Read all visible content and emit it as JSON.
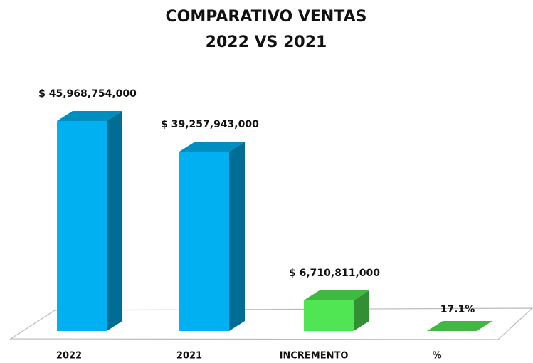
{
  "chart_data": {
    "type": "bar3d",
    "title": [
      "COMPARATIVO VENTAS",
      "2022 VS 2021"
    ],
    "categories": [
      "2022",
      "2021",
      "INCREMENTO",
      "%"
    ],
    "values": [
      45968754000,
      39257943000,
      6710811000,
      17.1
    ],
    "value_labels": [
      "$ 45,968,754,000",
      "$ 39,257,943,000",
      "$ 6,710,811,000",
      "17.1%"
    ],
    "colors": [
      "#00b0f0",
      "#00b0f0",
      "#50e653",
      "#50e653"
    ]
  }
}
